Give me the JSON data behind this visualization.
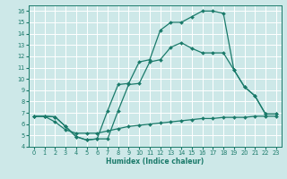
{
  "bg_color": "#cde8e8",
  "grid_color": "#ffffff",
  "line_color": "#1a7a6a",
  "marker": "D",
  "markersize": 2.0,
  "linewidth": 0.9,
  "xlabel": "Humidex (Indice chaleur)",
  "xlim": [
    -0.5,
    23.5
  ],
  "ylim": [
    4,
    16.5
  ],
  "xticks": [
    0,
    1,
    2,
    3,
    4,
    5,
    6,
    7,
    8,
    9,
    10,
    11,
    12,
    13,
    14,
    15,
    16,
    17,
    18,
    19,
    20,
    21,
    22,
    23
  ],
  "yticks": [
    4,
    5,
    6,
    7,
    8,
    9,
    10,
    11,
    12,
    13,
    14,
    15,
    16
  ],
  "curve1_x": [
    0,
    1,
    2,
    3,
    4,
    5,
    6,
    7,
    8,
    9,
    10,
    11,
    12,
    13,
    14,
    15,
    16,
    17,
    18,
    19,
    20,
    21,
    22,
    23
  ],
  "curve1_y": [
    6.7,
    6.7,
    6.65,
    5.8,
    4.9,
    4.6,
    4.7,
    7.2,
    9.5,
    9.6,
    11.5,
    11.7,
    14.3,
    15.0,
    15.0,
    15.5,
    16.0,
    16.0,
    15.8,
    10.8,
    9.3,
    8.5,
    6.9,
    6.9
  ],
  "curve2_x": [
    0,
    1,
    2,
    3,
    4,
    5,
    6,
    7,
    8,
    9,
    10,
    11,
    12,
    13,
    14,
    15,
    16,
    17,
    18,
    19,
    20,
    21,
    22,
    23
  ],
  "curve2_y": [
    6.7,
    6.7,
    6.65,
    5.8,
    4.9,
    4.6,
    4.7,
    4.7,
    7.2,
    9.5,
    9.6,
    11.5,
    11.7,
    12.8,
    13.2,
    12.7,
    12.3,
    12.3,
    12.3,
    10.8,
    9.3,
    8.5,
    6.9,
    6.9
  ],
  "curve3_x": [
    0,
    1,
    2,
    3,
    4,
    5,
    6,
    7,
    8,
    9,
    10,
    11,
    12,
    13,
    14,
    15,
    16,
    17,
    18,
    19,
    20,
    21,
    22,
    23
  ],
  "curve3_y": [
    6.7,
    6.7,
    6.2,
    5.5,
    5.2,
    5.2,
    5.2,
    5.4,
    5.6,
    5.8,
    5.9,
    6.0,
    6.1,
    6.2,
    6.3,
    6.4,
    6.5,
    6.5,
    6.6,
    6.6,
    6.6,
    6.7,
    6.7,
    6.7
  ],
  "xlabel_fontsize": 5.5,
  "tick_fontsize": 4.8,
  "spine_color": "#1a7a6a",
  "spine_linewidth": 0.7
}
